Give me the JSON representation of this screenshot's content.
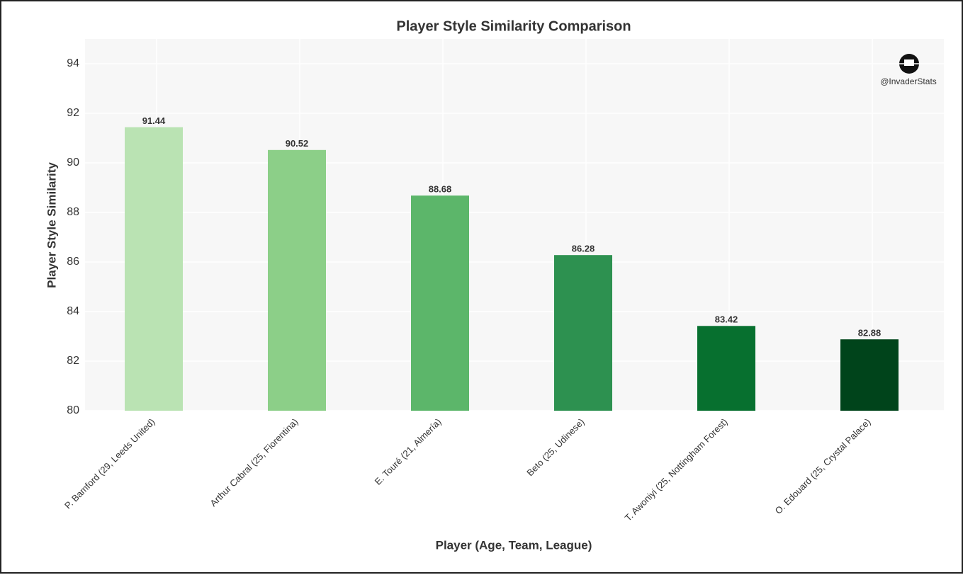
{
  "chart_data": {
    "type": "bar",
    "title": "Player Style Similarity Comparison",
    "x_label": "Player (Age, Team, League)",
    "y_label": "Player Style Similarity",
    "watermark": "@InvaderStats",
    "categories": [
      "P. Bamford (29, Leeds United)",
      "Arthur Cabral (25, Fiorentina)",
      "E. Touré (21, Almería)",
      "Beto (25, Udinese)",
      "T. Awoniyi (25, Nottingham Forest)",
      "O. Edouard (25, Crystal Palace)"
    ],
    "values": [
      91.44,
      90.52,
      88.68,
      86.28,
      83.42,
      82.88
    ],
    "colors": [
      "#bae3b3",
      "#8ccf88",
      "#5cb66a",
      "#2d9150",
      "#07702f",
      "#00441b"
    ],
    "ylim": [
      80,
      95
    ],
    "yticks": [
      80,
      82,
      84,
      86,
      88,
      90,
      92,
      94
    ],
    "grid": true
  }
}
